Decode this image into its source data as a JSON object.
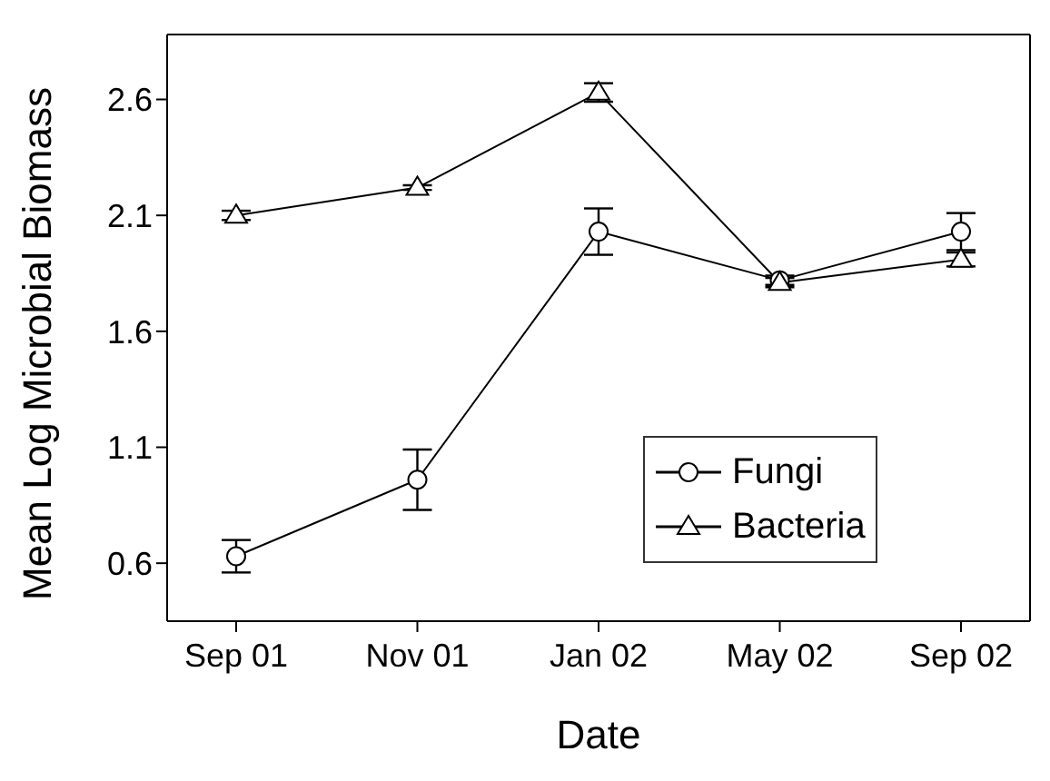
{
  "chart_data": {
    "type": "line",
    "xlabel": "Date",
    "ylabel": "Mean Log Microbial Biomass",
    "categories": [
      "Sep 01",
      "Nov 01",
      "Jan 02",
      "May 02",
      "Sep 02"
    ],
    "series": [
      {
        "name": "Fungi",
        "color": "#000000",
        "marker": "circle",
        "values": [
          0.63,
          0.96,
          2.03,
          1.82,
          2.03
        ],
        "errors": [
          0.07,
          0.13,
          0.1,
          0.02,
          0.08
        ]
      },
      {
        "name": "Bacteria",
        "color": "#000000",
        "marker": "triangle",
        "values": [
          2.1,
          2.22,
          2.63,
          1.81,
          1.91
        ],
        "errors": [
          0.02,
          0.01,
          0.04,
          0.02,
          0.03
        ]
      }
    ],
    "ylim": [
      0.35,
      2.88
    ],
    "yticks": [
      0.6,
      1.1,
      1.6,
      2.1,
      2.6
    ],
    "grid": false,
    "legend": "bottom right",
    "line_style": "solid"
  }
}
